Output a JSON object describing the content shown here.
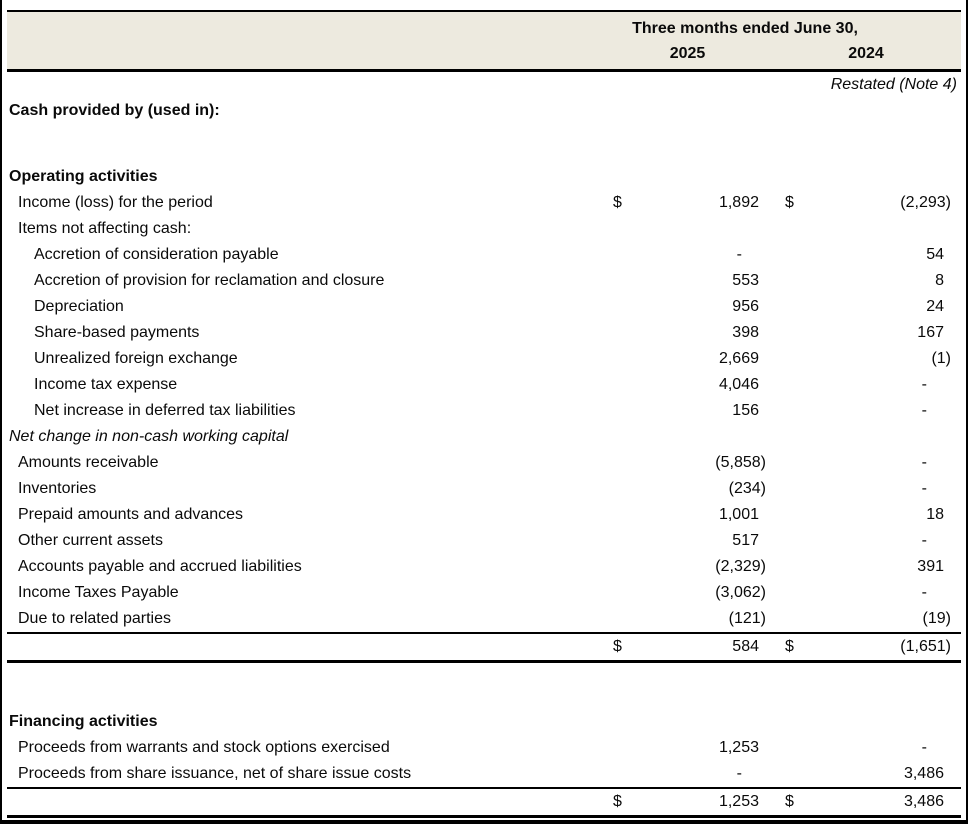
{
  "document": {
    "kind": "cash-flow-statement-excerpt"
  },
  "colors": {
    "header_band_bg": "#edeadf",
    "rule_color": "#000000",
    "text_color": "#0a0a0a"
  },
  "header": {
    "period_title": "Three months ended June 30,",
    "year_columns": [
      "2025",
      "2024"
    ],
    "restated_note": "Restated (Note 4)"
  },
  "table": {
    "currency_symbol": "$",
    "rows": [
      {
        "type": "section",
        "bold": true,
        "label": "Cash provided by (used in):"
      },
      {
        "type": "blank"
      },
      {
        "type": "section",
        "bold": true,
        "label": "Operating activities"
      },
      {
        "type": "item",
        "indent": 1,
        "label": "Income (loss) for the period",
        "d1": "$",
        "v1": "1,892",
        "d2": "$",
        "v2": "(2,293)"
      },
      {
        "type": "item",
        "indent": 1,
        "label": "Items not affecting cash:"
      },
      {
        "type": "item",
        "indent": 2,
        "label": "Accretion of consideration payable",
        "v1": "-",
        "v2": "54"
      },
      {
        "type": "item",
        "indent": 2,
        "label": "Accretion of provision for reclamation and closure",
        "v1": "553",
        "v2": "8"
      },
      {
        "type": "item",
        "indent": 2,
        "label": "Depreciation",
        "v1": "956",
        "v2": "24"
      },
      {
        "type": "item",
        "indent": 2,
        "label": "Share-based payments",
        "v1": "398",
        "v2": "167"
      },
      {
        "type": "item",
        "indent": 2,
        "label": "Unrealized foreign exchange",
        "v1": "2,669",
        "v2": "(1)"
      },
      {
        "type": "item",
        "indent": 2,
        "label": "Income tax expense",
        "v1": "4,046",
        "v2": "-"
      },
      {
        "type": "item",
        "indent": 2,
        "label": "Net increase in deferred tax liabilities",
        "v1": "156",
        "v2": "-"
      },
      {
        "type": "item",
        "indent": 0,
        "italic": true,
        "label": "Net change in non-cash working capital"
      },
      {
        "type": "item",
        "indent": 1,
        "label": "Amounts receivable",
        "v1": "(5,858)",
        "v2": "-"
      },
      {
        "type": "item",
        "indent": 1,
        "label": "Inventories",
        "v1": "(234)",
        "v2": "-"
      },
      {
        "type": "item",
        "indent": 1,
        "label": "Prepaid amounts and advances",
        "v1": "1,001",
        "v2": "18"
      },
      {
        "type": "item",
        "indent": 1,
        "label": "Other current assets",
        "v1": "517",
        "v2": "-"
      },
      {
        "type": "item",
        "indent": 1,
        "label": "Accounts payable and accrued liabilities",
        "v1": "(2,329)",
        "v2": "391"
      },
      {
        "type": "item",
        "indent": 1,
        "label": "Income Taxes Payable",
        "v1": "(3,062)",
        "v2": "-"
      },
      {
        "type": "item",
        "indent": 1,
        "label": "Due to related parties",
        "v1": "(121)",
        "v2": "(19)"
      },
      {
        "type": "total",
        "label": "",
        "d1": "$",
        "v1": "584",
        "d2": "$",
        "v2": "(1,651)"
      },
      {
        "type": "gap"
      },
      {
        "type": "section",
        "bold": true,
        "label": "Financing activities"
      },
      {
        "type": "item",
        "indent": 1,
        "label": "Proceeds from warrants and stock options exercised",
        "v1": "1,253",
        "v2": "-"
      },
      {
        "type": "item",
        "indent": 1,
        "label": "Proceeds from share issuance, net of share issue costs",
        "v1": "-",
        "v2": "3,486"
      },
      {
        "type": "total",
        "label": "",
        "d1": "$",
        "v1": "1,253",
        "d2": "$",
        "v2": "3,486"
      }
    ]
  }
}
